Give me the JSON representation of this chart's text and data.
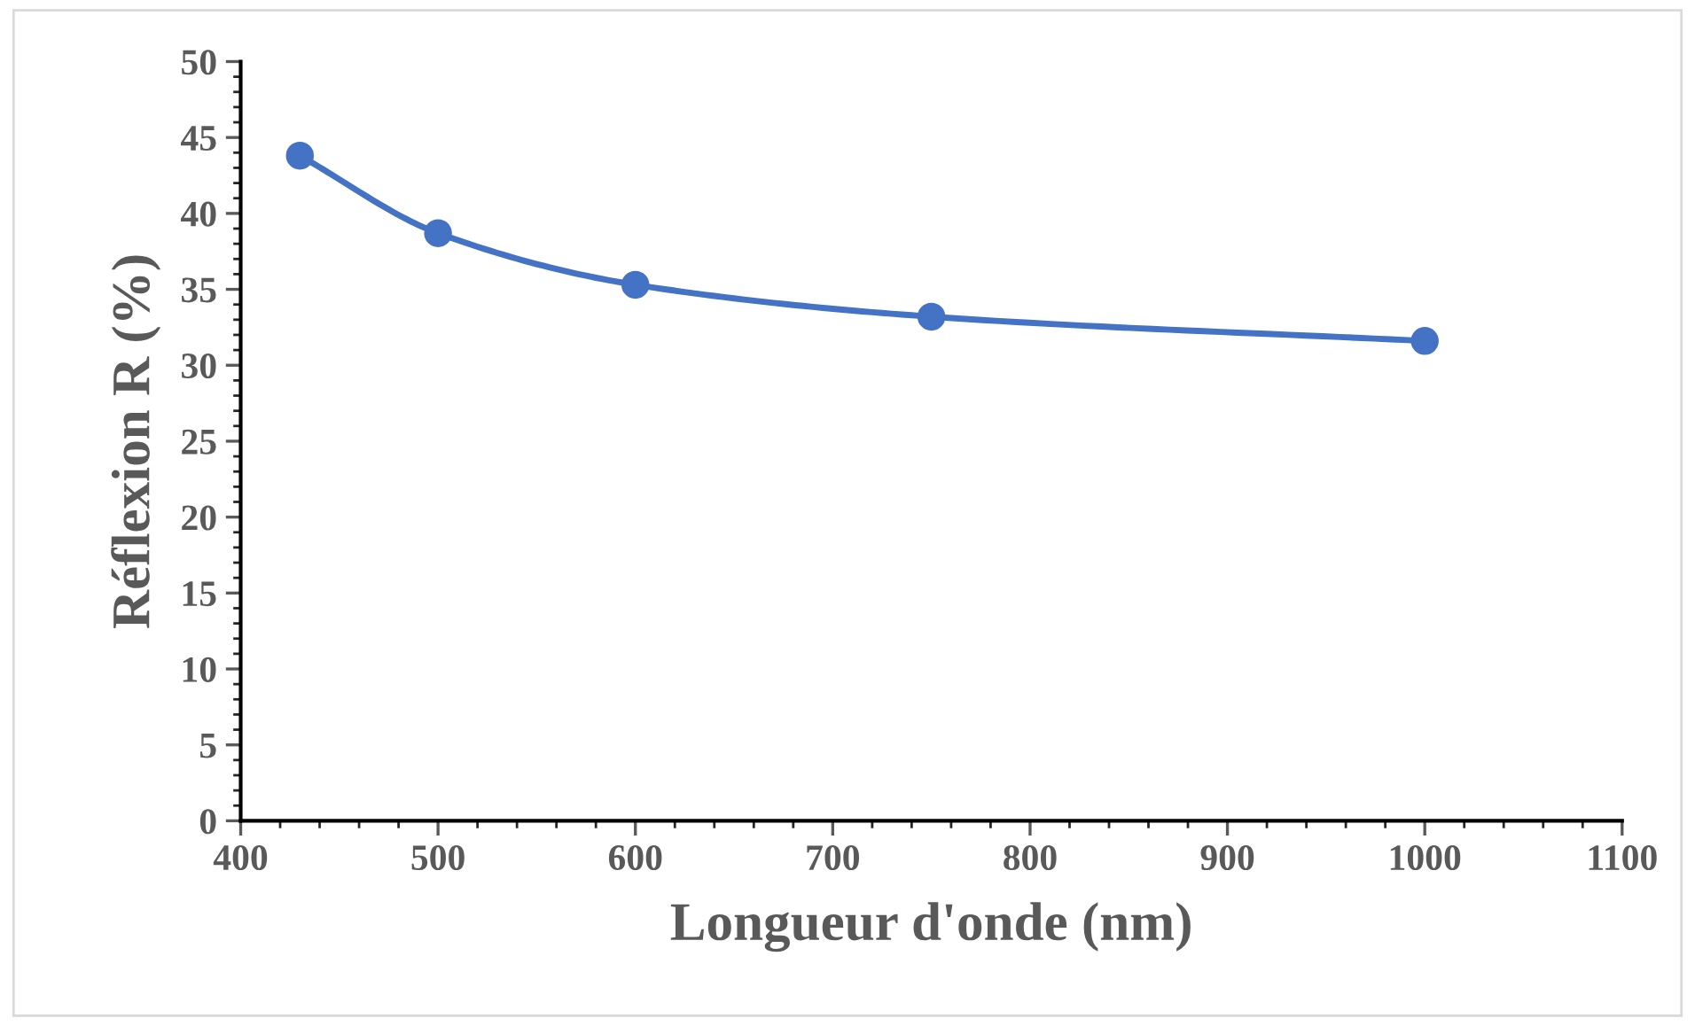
{
  "chart_data": {
    "type": "line",
    "xlabel": "Longueur d'onde (nm)",
    "ylabel": "Réflexion R (%)",
    "x": [
      430,
      500,
      600,
      750,
      1000
    ],
    "series": [
      {
        "color": "#4472c4",
        "values": [
          43.8,
          38.7,
          35.3,
          33.2,
          31.6
        ]
      }
    ],
    "xlim": [
      400,
      1100
    ],
    "xticks": [
      400,
      500,
      600,
      700,
      800,
      900,
      1000,
      1100
    ],
    "ylim": [
      0,
      50
    ],
    "yticks": [
      0,
      5,
      10,
      15,
      20,
      25,
      30,
      35,
      40,
      45,
      50
    ],
    "marker": "circle",
    "line_style": "solid",
    "grid": false,
    "legend": false
  }
}
